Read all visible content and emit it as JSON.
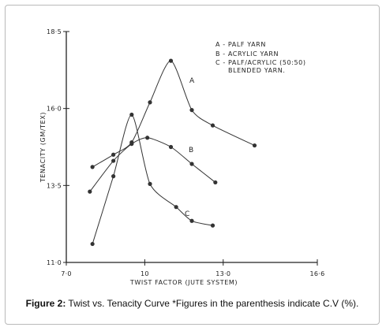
{
  "caption": {
    "label": "Figure 2:",
    "text": " Twist vs. Tenacity Curve *Figures in the parenthesis indicate C.V (%)."
  },
  "chart_data": {
    "type": "line",
    "xlabel": "TWIST FACTOR (JUTE SYSTEM)",
    "ylabel": "TENACITY (GM/TEX)",
    "xlim": [
      7.0,
      16.6
    ],
    "ylim": [
      11.0,
      18.5
    ],
    "x_ticks": [
      7.0,
      10,
      13.0,
      16.6
    ],
    "x_tick_labels": [
      "7·0",
      "10",
      "13·0",
      "16·6"
    ],
    "y_ticks": [
      11.0,
      13.5,
      16.0,
      18.5
    ],
    "y_tick_labels": [
      "11·0",
      "13·5",
      "16·0",
      "18·5"
    ],
    "grid": false,
    "legend_position": "top-right",
    "legend": [
      "A - PALF YARN",
      "B - ACRYLIC YARN",
      "C - PALF/ACRYLIC (50:50)",
      "BLENDED YARN."
    ],
    "series": [
      {
        "name": "A",
        "x": [
          8.0,
          8.8,
          9.5,
          10.2,
          11.0,
          11.8,
          12.6,
          14.2
        ],
        "y": [
          14.1,
          14.5,
          14.9,
          16.2,
          17.55,
          15.95,
          15.45,
          14.8
        ]
      },
      {
        "name": "B",
        "x": [
          7.9,
          8.8,
          9.5,
          10.1,
          11.0,
          11.8,
          12.7
        ],
        "y": [
          13.3,
          14.3,
          14.85,
          15.05,
          14.75,
          14.2,
          13.6
        ]
      },
      {
        "name": "C",
        "x": [
          8.0,
          8.8,
          9.5,
          10.2,
          11.2,
          11.8,
          12.6
        ],
        "y": [
          11.6,
          13.8,
          15.8,
          13.55,
          12.8,
          12.35,
          12.2
        ]
      }
    ]
  }
}
